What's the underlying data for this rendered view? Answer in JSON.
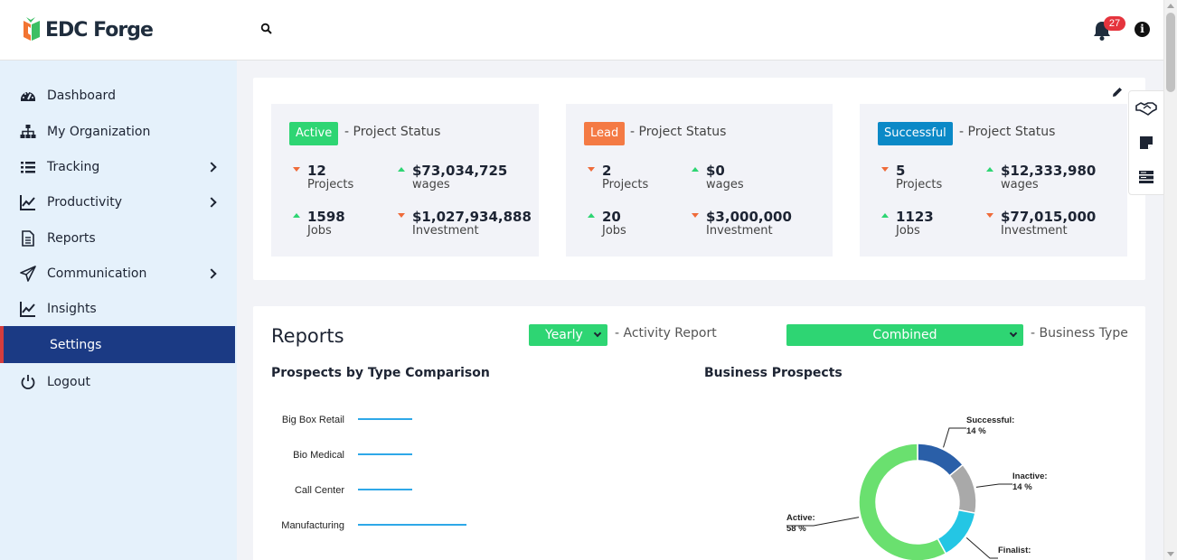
{
  "header": {
    "brand": "EDC Forge",
    "notification_count": "27",
    "icons": [
      "search-icon",
      "bell-icon",
      "info-icon"
    ]
  },
  "sidebar": {
    "items": [
      {
        "label": "Dashboard",
        "icon": "dashboard-icon",
        "has_submenu": false,
        "active": false
      },
      {
        "label": "My Organization",
        "icon": "org-chart-icon",
        "has_submenu": false,
        "active": false
      },
      {
        "label": "Tracking",
        "icon": "list-icon",
        "has_submenu": true,
        "active": false
      },
      {
        "label": "Productivity",
        "icon": "line-chart-icon",
        "has_submenu": true,
        "active": false
      },
      {
        "label": "Reports",
        "icon": "document-icon",
        "has_submenu": false,
        "active": false
      },
      {
        "label": "Communication",
        "icon": "paper-plane-icon",
        "has_submenu": true,
        "active": false
      },
      {
        "label": "Insights",
        "icon": "line-chart-icon",
        "has_submenu": false,
        "active": false
      },
      {
        "label": "Settings",
        "icon": "",
        "has_submenu": false,
        "active": true
      },
      {
        "label": "Logout",
        "icon": "power-icon",
        "has_submenu": false,
        "active": false
      }
    ]
  },
  "status_cards": [
    {
      "badge": "Active",
      "badge_color": "#2ed573",
      "status_label": "- Project Status",
      "metrics": [
        {
          "value": "12",
          "label": "Projects",
          "trend": "down"
        },
        {
          "value": "$73,034,725",
          "label": "wages",
          "trend": "up"
        },
        {
          "value": "1598",
          "label": "Jobs",
          "trend": "up"
        },
        {
          "value": "$1,027,934,888",
          "label": "Investment",
          "trend": "down"
        }
      ]
    },
    {
      "badge": "Lead",
      "badge_color": "#f47a44",
      "status_label": "- Project Status",
      "metrics": [
        {
          "value": "2",
          "label": "Projects",
          "trend": "down"
        },
        {
          "value": "$0",
          "label": "wages",
          "trend": "up"
        },
        {
          "value": "20",
          "label": "Jobs",
          "trend": "up"
        },
        {
          "value": "$3,000,000",
          "label": "Investment",
          "trend": "down"
        }
      ]
    },
    {
      "badge": "Successful",
      "badge_color": "#0b89c7",
      "status_label": "- Project Status",
      "metrics": [
        {
          "value": "5",
          "label": "Projects",
          "trend": "down"
        },
        {
          "value": "$12,333,980",
          "label": "wages",
          "trend": "up"
        },
        {
          "value": "1123",
          "label": "Jobs",
          "trend": "up"
        },
        {
          "value": "$77,015,000",
          "label": "Investment",
          "trend": "down"
        }
      ]
    }
  ],
  "side_tools": [
    "handshake-icon",
    "sticky-note-icon",
    "server-icon"
  ],
  "reports": {
    "title": "Reports",
    "period_select": "Yearly",
    "period_label": "- Activity Report",
    "business_select": "Combined",
    "business_label": "- Business Type",
    "bar_chart_title": "Prospects by Type Comparison",
    "donut_chart_title": "Business Prospects"
  },
  "chart_data": [
    {
      "type": "bar",
      "title": "Prospects by Type Comparison",
      "orientation": "horizontal",
      "categories": [
        "Big Box Retail",
        "Bio Medical",
        "Call Center",
        "Manufacturing"
      ],
      "values": [
        1,
        1,
        1,
        2
      ],
      "color": "#2ea8e8"
    },
    {
      "type": "pie",
      "title": "Business Prospects",
      "donut": true,
      "slices": [
        {
          "label": "Successful:",
          "value": 14,
          "display": "14 %",
          "color": "#2a5fa8"
        },
        {
          "label": "Inactive:",
          "value": 14,
          "display": "14 %",
          "color": "#a9a9a9"
        },
        {
          "label": "Finalist:",
          "value": 14,
          "display": "",
          "color": "#24c6e4"
        },
        {
          "label": "Active:",
          "value": 58,
          "display": "58 %",
          "color": "#6ae06f"
        }
      ]
    }
  ]
}
